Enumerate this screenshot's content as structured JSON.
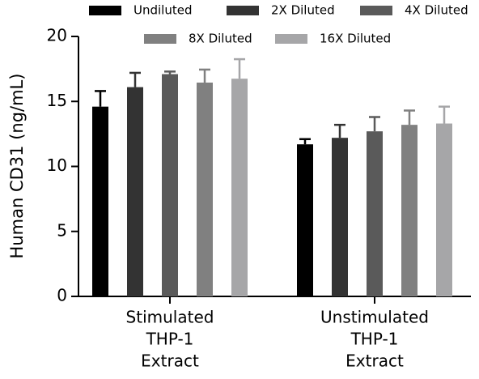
{
  "chart_data": {
    "type": "bar",
    "ylabel": "Human CD31 (ng/mL)",
    "categories": [
      [
        "Stimulated",
        "THP-1",
        "Extract"
      ],
      [
        "Unstimulated",
        "THP-1",
        "Extract"
      ]
    ],
    "series": [
      {
        "name": "Undiluted",
        "color": "#000000",
        "values": [
          14.6,
          11.7
        ],
        "errors": [
          1.2,
          0.4
        ]
      },
      {
        "name": "2X Diluted",
        "color": "#333333",
        "values": [
          16.1,
          12.2
        ],
        "errors": [
          1.1,
          1.0
        ]
      },
      {
        "name": "4X Diluted",
        "color": "#5a5a5a",
        "values": [
          17.1,
          12.7
        ],
        "errors": [
          0.2,
          1.1
        ]
      },
      {
        "name": "8X Diluted",
        "color": "#808080",
        "values": [
          16.45,
          13.2
        ],
        "errors": [
          1.0,
          1.1
        ]
      },
      {
        "name": "16X Diluted",
        "color": "#a6a6a8",
        "values": [
          16.75,
          13.3
        ],
        "errors": [
          1.5,
          1.3
        ]
      }
    ],
    "ylim": [
      0,
      20
    ],
    "yticks": [
      0,
      5,
      10,
      15,
      20
    ],
    "grid": false
  }
}
